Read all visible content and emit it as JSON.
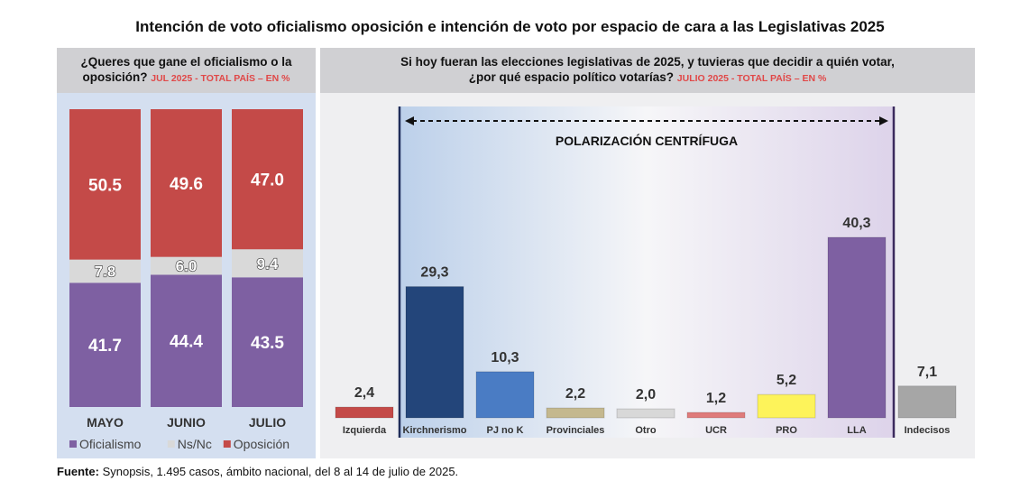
{
  "title": "Intención de voto oficialismo oposición e intención de voto por espacio de cara a las Legislativas 2025",
  "left_panel": {
    "question_line1": "¿Queres que gane el oficialismo o la",
    "question_line2": "oposición?",
    "subtitle": "JUL 2025 - TOTAL PAÍS – EN %"
  },
  "right_panel": {
    "question_line1": "Si hoy fueran las elecciones legislativas de 2025, y tuvieras que decidir a quién votar,",
    "question_line2": "¿por qué espacio político votarías?",
    "subtitle": "JULIO 2025 - TOTAL PAÍS – EN %",
    "annotation": "POLARIZACIÓN CENTRÍFUGA"
  },
  "chart_data": [
    {
      "type": "bar",
      "stacked": true,
      "categories": [
        "MAYO",
        "JUNIO",
        "JULIO"
      ],
      "series": [
        {
          "name": "Oficialismo",
          "values": [
            41.7,
            44.4,
            43.5
          ],
          "labels": [
            "41.7",
            "44.4",
            "43.5"
          ],
          "color": "#7e60a2"
        },
        {
          "name": "Ns/Nc",
          "values": [
            7.8,
            6.0,
            9.4
          ],
          "labels": [
            "7.8",
            "6.0",
            "9.4"
          ],
          "color": "#d9d9d9"
        },
        {
          "name": "Oposición",
          "values": [
            50.5,
            49.6,
            47.0
          ],
          "labels": [
            "50.5",
            "49.6",
            "47.0"
          ],
          "color": "#c44a48"
        }
      ],
      "legend": "bottom"
    },
    {
      "type": "bar",
      "categories": [
        "Izquierda",
        "Kirchnerismo",
        "PJ no K",
        "Provinciales",
        "Otro",
        "UCR",
        "PRO",
        "LLA",
        "Indecisos"
      ],
      "values": [
        2.4,
        29.3,
        10.3,
        2.2,
        2.0,
        1.2,
        5.2,
        40.3,
        7.1
      ],
      "labels": [
        "2,4",
        "29,3",
        "10,3",
        "2,2",
        "2,0",
        "1,2",
        "5,2",
        "40,3",
        "7,1"
      ],
      "colors": [
        "#c44a48",
        "#23457a",
        "#4a7cc4",
        "#c4b88e",
        "#d8d8d8",
        "#df7b7b",
        "#fdf35a",
        "#7e60a2",
        "#a6a6a6"
      ],
      "ylim": [
        0,
        45
      ]
    }
  ],
  "source": {
    "label": "Fuente:",
    "text": " Synopsis, 1.495 casos, ámbito nacional, del 8 al 14 de julio de 2025."
  }
}
